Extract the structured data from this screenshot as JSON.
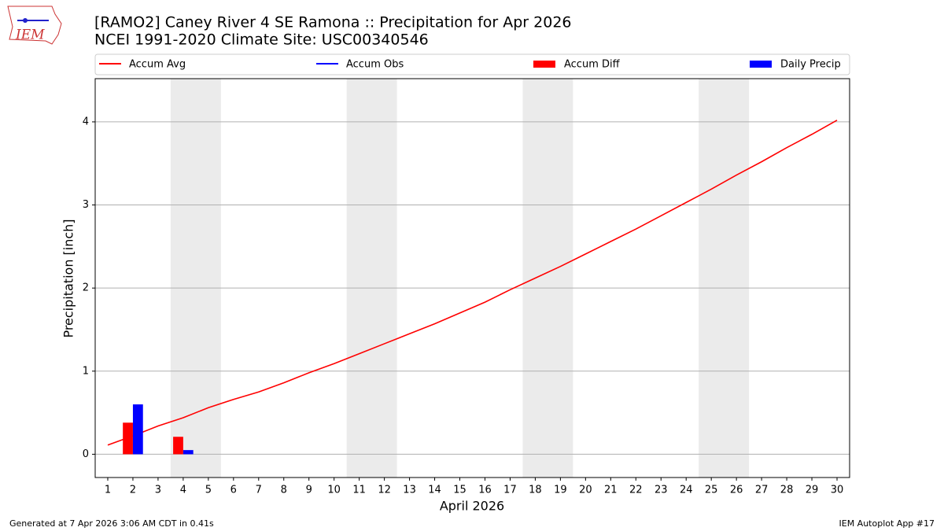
{
  "logo_text": "IEM",
  "footer_left": "Generated at 7 Apr 2026 3:06 AM CDT in 0.41s",
  "footer_right": "IEM Autoplot App #17",
  "chart_data": {
    "type": "line",
    "title": "[RAMO2] Caney River 4 SE Ramona :: Precipitation for Apr 2026",
    "subtitle": "NCEI 1991-2020 Climate Site: USC00340546",
    "x_label": "April 2026",
    "y_label": "Precipitation [inch]",
    "x": [
      1,
      2,
      3,
      4,
      5,
      6,
      7,
      8,
      9,
      10,
      11,
      12,
      13,
      14,
      15,
      16,
      17,
      18,
      19,
      20,
      21,
      22,
      23,
      24,
      25,
      26,
      27,
      28,
      29,
      30
    ],
    "xlim": [
      0.5,
      30.5
    ],
    "xticks": [
      1,
      2,
      3,
      4,
      5,
      6,
      7,
      8,
      9,
      10,
      11,
      12,
      13,
      14,
      15,
      16,
      17,
      18,
      19,
      20,
      21,
      22,
      23,
      24,
      25,
      26,
      27,
      28,
      29,
      30
    ],
    "ylim": [
      -0.28,
      4.52
    ],
    "yticks": [
      0,
      1,
      2,
      3,
      4
    ],
    "grid": true,
    "weekend_spans": [
      [
        3.5,
        5.5
      ],
      [
        10.5,
        12.5
      ],
      [
        17.5,
        19.5
      ],
      [
        24.5,
        26.5
      ]
    ],
    "series": [
      {
        "name": "Accum Avg",
        "kind": "line",
        "color": "#ff0000",
        "values": [
          0.11,
          0.22,
          0.34,
          0.44,
          0.56,
          0.66,
          0.75,
          0.86,
          0.98,
          1.09,
          1.21,
          1.33,
          1.45,
          1.57,
          1.7,
          1.83,
          1.98,
          2.12,
          2.26,
          2.41,
          2.56,
          2.71,
          2.87,
          3.03,
          3.19,
          3.36,
          3.52,
          3.69,
          3.85,
          4.02
        ]
      },
      {
        "name": "Accum Obs",
        "kind": "line",
        "color": "#0000ff",
        "values": [
          null,
          null,
          null,
          null,
          null,
          null,
          null,
          null,
          null,
          null,
          null,
          null,
          null,
          null,
          null,
          null,
          null,
          null,
          null,
          null,
          null,
          null,
          null,
          null,
          null,
          null,
          null,
          null,
          null,
          null
        ]
      },
      {
        "name": "Accum Diff",
        "kind": "bar",
        "color": "#ff0000",
        "values": [
          null,
          0.38,
          null,
          0.21,
          null,
          null,
          null,
          null,
          null,
          null,
          null,
          null,
          null,
          null,
          null,
          null,
          null,
          null,
          null,
          null,
          null,
          null,
          null,
          null,
          null,
          null,
          null,
          null,
          null,
          null
        ]
      },
      {
        "name": "Daily Precip",
        "kind": "bar",
        "color": "#0000ff",
        "values": [
          null,
          0.6,
          null,
          0.05,
          null,
          null,
          null,
          null,
          null,
          null,
          null,
          null,
          null,
          null,
          null,
          null,
          null,
          null,
          null,
          null,
          null,
          null,
          null,
          null,
          null,
          null,
          null,
          null,
          null,
          null
        ]
      }
    ]
  }
}
